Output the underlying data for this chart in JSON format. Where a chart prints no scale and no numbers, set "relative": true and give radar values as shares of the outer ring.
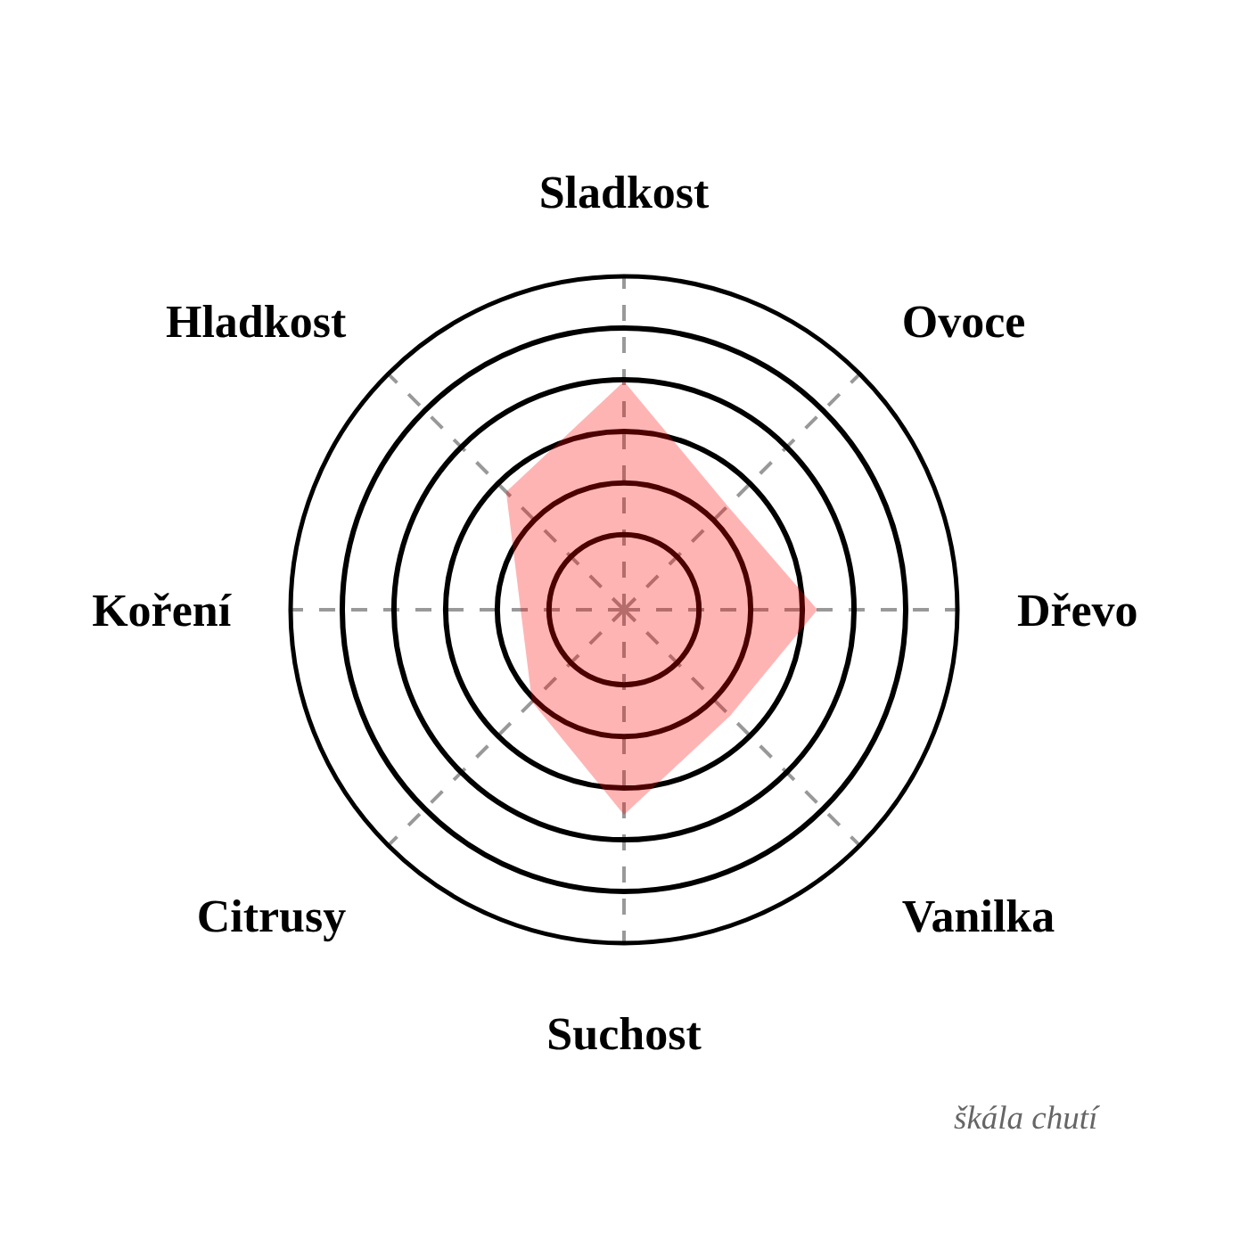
{
  "chart_data": {
    "type": "radar",
    "relative": true,
    "categories": [
      "Sladkost",
      "Ovoce",
      "Dřevo",
      "Vanilka",
      "Suchost",
      "Citrusy",
      "Koření",
      "Hladkost"
    ],
    "series": [
      {
        "color": "#ffb5b5",
        "values": [
          0.685,
          0.44,
          0.58,
          0.45,
          0.615,
          0.39,
          0.31,
          0.5
        ]
      }
    ],
    "grid": true,
    "annotations": [
      "škála chutí"
    ]
  }
}
